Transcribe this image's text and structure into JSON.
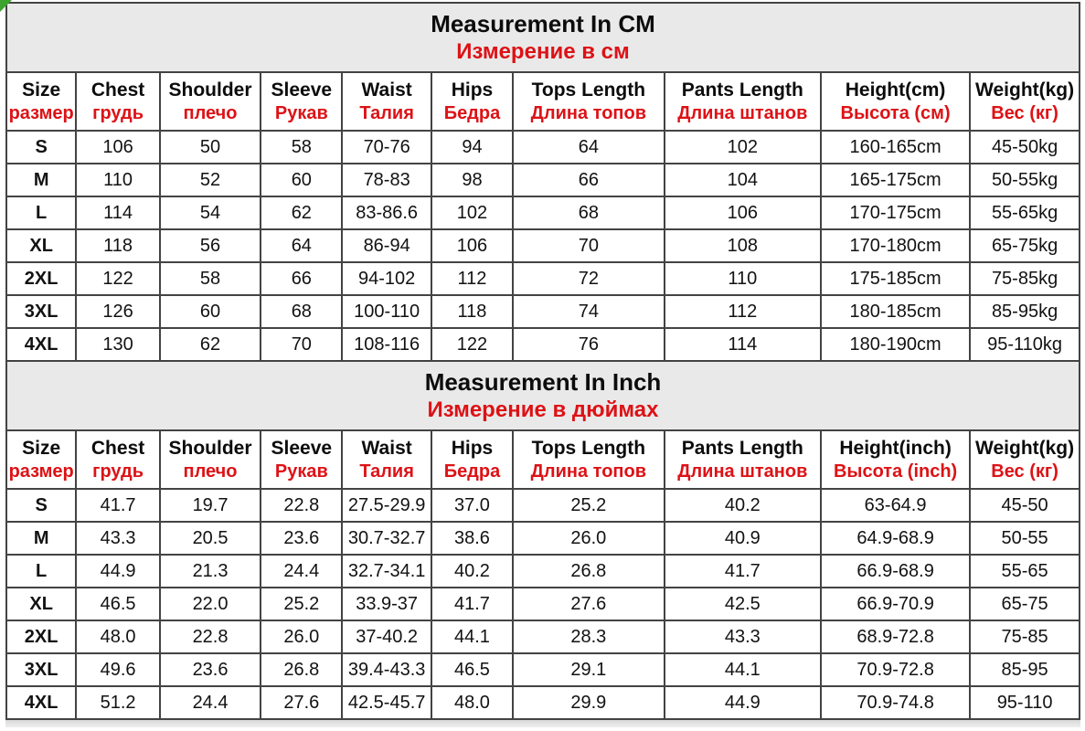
{
  "colors": {
    "red_accent": "#dd1216",
    "title_band_bg": "#e9e9e9",
    "grid_border": "#434343",
    "corner_marker_green": "#3da32f"
  },
  "chart_data": [
    {
      "type": "table",
      "title": "Measurement In CM",
      "subtitle_ru": "Измерение в см",
      "columns": [
        {
          "en": "Size",
          "ru": "размер"
        },
        {
          "en": "Chest",
          "ru": "грудь"
        },
        {
          "en": "Shoulder",
          "ru": "плечо"
        },
        {
          "en": "Sleeve",
          "ru": "Рукав"
        },
        {
          "en": "Waist",
          "ru": "Талия"
        },
        {
          "en": "Hips",
          "ru": "Бедра"
        },
        {
          "en": "Tops Length",
          "ru": "Длина топов"
        },
        {
          "en": "Pants Length",
          "ru": "Длина штанов"
        },
        {
          "en": "Height(cm)",
          "ru": "Высота (см)"
        },
        {
          "en": "Weight(kg)",
          "ru": "Вес (кг)"
        }
      ],
      "rows": [
        [
          "S",
          "106",
          "50",
          "58",
          "70-76",
          "94",
          "64",
          "102",
          "160-165cm",
          "45-50kg"
        ],
        [
          "M",
          "110",
          "52",
          "60",
          "78-83",
          "98",
          "66",
          "104",
          "165-175cm",
          "50-55kg"
        ],
        [
          "L",
          "114",
          "54",
          "62",
          "83-86.6",
          "102",
          "68",
          "106",
          "170-175cm",
          "55-65kg"
        ],
        [
          "XL",
          "118",
          "56",
          "64",
          "86-94",
          "106",
          "70",
          "108",
          "170-180cm",
          "65-75kg"
        ],
        [
          "2XL",
          "122",
          "58",
          "66",
          "94-102",
          "112",
          "72",
          "110",
          "175-185cm",
          "75-85kg"
        ],
        [
          "3XL",
          "126",
          "60",
          "68",
          "100-110",
          "118",
          "74",
          "112",
          "180-185cm",
          "85-95kg"
        ],
        [
          "4XL",
          "130",
          "62",
          "70",
          "108-116",
          "122",
          "76",
          "114",
          "180-190cm",
          "95-110kg"
        ]
      ]
    },
    {
      "type": "table",
      "title": "Measurement In Inch",
      "subtitle_ru": "Измерение в дюймах",
      "columns": [
        {
          "en": "Size",
          "ru": "размер"
        },
        {
          "en": "Chest",
          "ru": "грудь"
        },
        {
          "en": "Shoulder",
          "ru": "плечо"
        },
        {
          "en": "Sleeve",
          "ru": "Рукав"
        },
        {
          "en": "Waist",
          "ru": "Талия"
        },
        {
          "en": "Hips",
          "ru": "Бедра"
        },
        {
          "en": "Tops Length",
          "ru": "Длина топов"
        },
        {
          "en": "Pants Length",
          "ru": "Длина штанов"
        },
        {
          "en": "Height(inch)",
          "ru": "Высота (inch)"
        },
        {
          "en": "Weight(kg)",
          "ru": "Вес (кг)"
        }
      ],
      "rows": [
        [
          "S",
          "41.7",
          "19.7",
          "22.8",
          "27.5-29.9",
          "37.0",
          "25.2",
          "40.2",
          "63-64.9",
          "45-50"
        ],
        [
          "M",
          "43.3",
          "20.5",
          "23.6",
          "30.7-32.7",
          "38.6",
          "26.0",
          "40.9",
          "64.9-68.9",
          "50-55"
        ],
        [
          "L",
          "44.9",
          "21.3",
          "24.4",
          "32.7-34.1",
          "40.2",
          "26.8",
          "41.7",
          "66.9-68.9",
          "55-65"
        ],
        [
          "XL",
          "46.5",
          "22.0",
          "25.2",
          "33.9-37",
          "41.7",
          "27.6",
          "42.5",
          "66.9-70.9",
          "65-75"
        ],
        [
          "2XL",
          "48.0",
          "22.8",
          "26.0",
          "37-40.2",
          "44.1",
          "28.3",
          "43.3",
          "68.9-72.8",
          "75-85"
        ],
        [
          "3XL",
          "49.6",
          "23.6",
          "26.8",
          "39.4-43.3",
          "46.5",
          "29.1",
          "44.1",
          "70.9-72.8",
          "85-95"
        ],
        [
          "4XL",
          "51.2",
          "24.4",
          "27.6",
          "42.5-45.7",
          "48.0",
          "29.9",
          "44.9",
          "70.9-74.8",
          "95-110"
        ]
      ]
    }
  ]
}
